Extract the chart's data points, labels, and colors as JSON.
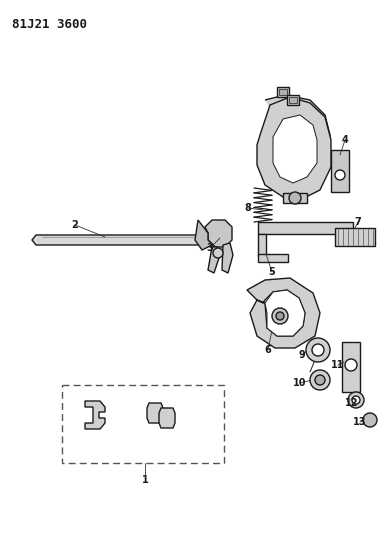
{
  "title": "81J21 3600",
  "bg": "#ffffff",
  "lc": "#1a1a1a",
  "fc": "#e8e8e8",
  "fig_w": 3.88,
  "fig_h": 5.33,
  "dpi": 100,
  "title_fontsize": 9,
  "label_fontsize": 7
}
